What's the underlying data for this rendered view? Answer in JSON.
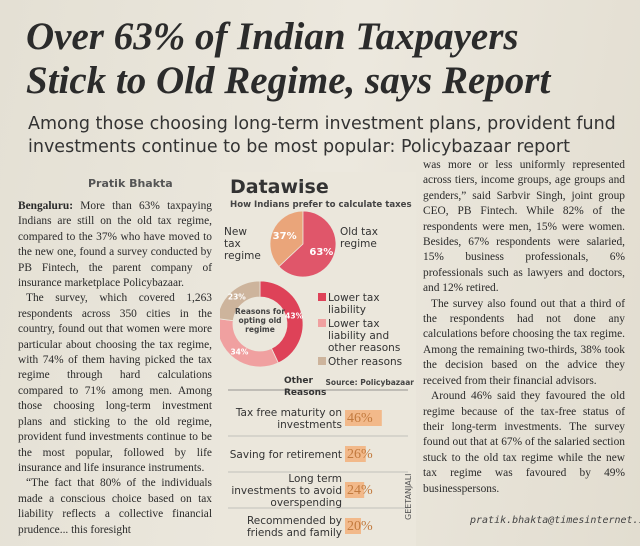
{
  "headline": [
    "Over 63% of Indian Taxpayers",
    "Stick to Old Regime, says Report"
  ],
  "subheadline": "Among those choosing long-term investment plans, provident fund investments continue to be most popular: Policybazaar report",
  "byline": "Pratik Bhakta",
  "left_column": {
    "dateline": "Bengaluru:",
    "paragraphs": [
      "More than 63% taxpaying Indians are still on the old tax regime, compared to the 37% who have moved to the new one, found a survey conducted by PB Fintech, the parent company of insurance marketplace Policybazaar.",
      "The survey, which covered 1,263 respondents across 350 cities in the country, found out that women were more particular about choosing the tax regime, with 74% of them having picked the tax regime through hard calculations compared to 71% among men. Among those choosing long-term investment plans and sticking to the old regime, provident fund investments continue to be the most popular, followed by life insurance and life insurance instruments.",
      "“The fact that 80% of the individuals made a conscious choice based on tax liability reflects a collective financial prudence... this foresight"
    ]
  },
  "right_column": {
    "paragraphs": [
      "was more or less uniformly represented across tiers, income groups, age groups and genders,” said Sarbvir Singh, joint group CEO, PB Fintech. While 82% of the respondents were men, 15% were women. Besides, 67% respondents were salaried, 15% business professionals, 6% professionals such as lawyers and doctors, and 12% retired.",
      "The survey also found out that a third of the respondents had not done any calculations before choosing the tax regime. Among the remaining two-thirds, 38% took the decision based on the advice they received from their financial advisors.",
      "Around 46% said they favoured the old regime because of the tax-free status of their long-term investments. The survey found out that at 67% of the salaried section stuck to the old tax regime while the new tax regime was favoured by 49% businesspersons."
    ]
  },
  "datawise": {
    "title": "Datawise",
    "subtitle": "How Indians prefer to calculate taxes",
    "regime": {
      "type": "pie",
      "categories": [
        "New tax regime",
        "Old tax regime"
      ],
      "values": [
        37,
        63
      ],
      "value_labels": [
        "37%",
        "63%"
      ],
      "colors": [
        "#eaa57a",
        "#e0566a"
      ]
    },
    "reasons_old": {
      "type": "donut",
      "center_label": "Reasons for opting old regime",
      "categories": [
        "Lower tax liability",
        "Lower tax liability and other reasons",
        "Other reasons"
      ],
      "values": [
        43,
        34,
        23
      ],
      "value_labels": [
        "43%",
        "34%",
        "23%"
      ],
      "colors": [
        "#de4258",
        "#f0a0a0",
        "#cdb49c"
      ]
    },
    "other_reasons": {
      "type": "bar",
      "title": "Other Reasons",
      "source": "Source: Policybazaar",
      "categories": [
        "Tax free maturity on investments",
        "Saving for retirement",
        "Long term investments to avoid overspending",
        "Recommended by friends and family"
      ],
      "values": [
        46,
        26,
        24,
        20
      ],
      "value_labels": [
        "46%",
        "26%",
        "24%",
        "20%"
      ],
      "color": "#f2b98a"
    }
  },
  "credit": "GEETANJALI",
  "email": "pratik.bhakta@timesinternet.in"
}
